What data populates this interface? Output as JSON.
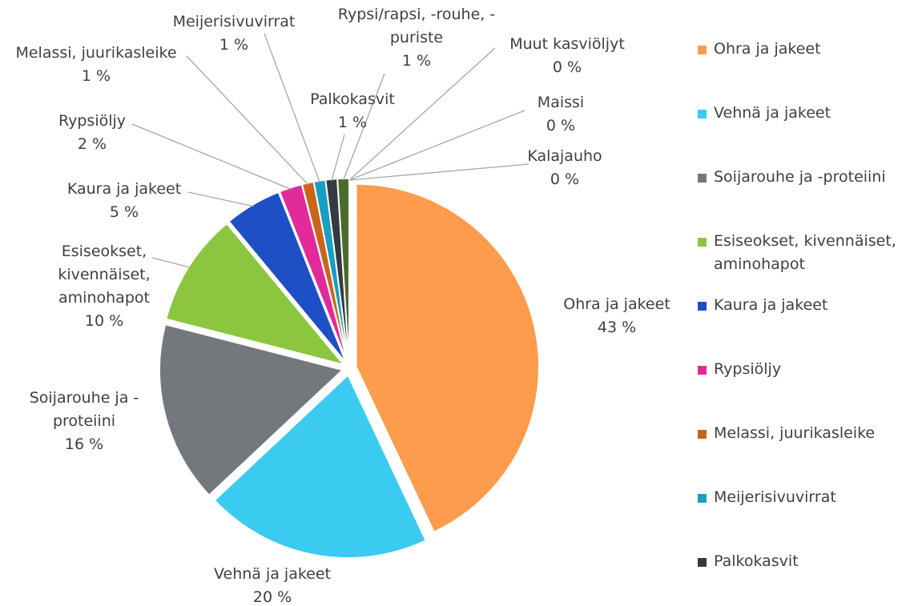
{
  "chart_data": {
    "type": "pie",
    "categories": [
      "Ohra ja jakeet",
      "Vehnä ja jakeet",
      "Soijarouhe ja -proteiini",
      "Esiseokset, kivennäiset, aminohapot",
      "Kaura ja jakeet",
      "Rypsiöljy",
      "Melassi, juurikasleike",
      "Meijerisivuvirrat",
      "Palkokasvit",
      "Rypsi/rapsi, -rouhe, -puriste",
      "Muut kasviöljyt",
      "Maissi",
      "Kalajauho"
    ],
    "values": [
      43,
      20,
      16,
      10,
      5,
      2,
      1,
      1,
      1,
      1,
      0,
      0,
      0
    ],
    "value_labels": [
      "43 %",
      "20 %",
      "16 %",
      "10 %",
      "5 %",
      "2 %",
      "1 %",
      "1 %",
      "1 %",
      "1 %",
      "0 %",
      "0 %",
      "0 %"
    ],
    "colors": [
      "#fc9c4c",
      "#3ccbf0",
      "#74777b",
      "#8cc63f",
      "#1f4fc4",
      "#e22a98",
      "#c8651a",
      "#189fc2",
      "#353a40",
      "#4a6b2a",
      "#7a5c2e",
      "#2c6f8a",
      "#5d8a3a"
    ],
    "legend": "right"
  }
}
